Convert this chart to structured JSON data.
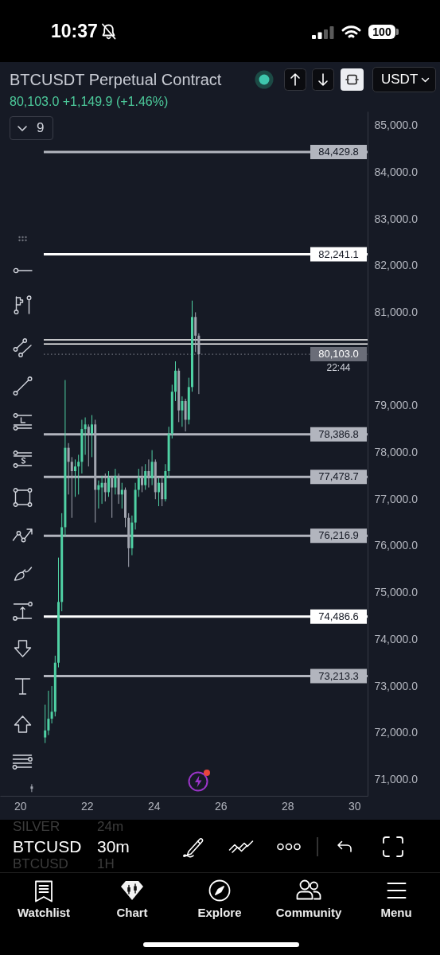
{
  "chart_data": {
    "type": "candlestick",
    "title": "BTCUSDT Perpetual Contract",
    "subtitle": "80,103.0 +1,149.9 (+1.46%)",
    "annotations": [
      "10:37",
      "100",
      "USDT",
      "9",
      "SILVER",
      "24m",
      "BTCUSD",
      "30m",
      "BTCUSD",
      "1H",
      "Watchlist",
      "Chart",
      "Explore",
      "Community",
      "Menu",
      {
        "text": "22:44",
        "y": 80103.0
      }
    ],
    "xlim": [
      19.4,
      30.4
    ],
    "xticks": [
      20,
      22,
      24,
      26,
      28,
      30
    ],
    "ylim": [
      70650,
      85300
    ],
    "yticks": [
      {
        "value": 85000,
        "label": "85,000.0"
      },
      {
        "value": 84000,
        "label": "84,000.0"
      },
      {
        "value": 83000,
        "label": "83,000.0"
      },
      {
        "value": 82000,
        "label": "82,000.0"
      },
      {
        "value": 81000,
        "label": "81,000.0"
      },
      {
        "value": 79000,
        "label": "79,000.0"
      },
      {
        "value": 78000,
        "label": "78,000.0"
      },
      {
        "value": 77000,
        "label": "77,000.0"
      },
      {
        "value": 76000,
        "label": "76,000.0"
      },
      {
        "value": 75000,
        "label": "75,000.0"
      },
      {
        "value": 74000,
        "label": "74,000.0"
      },
      {
        "value": 73000,
        "label": "73,000.0"
      },
      {
        "value": 72000,
        "label": "72,000.0"
      },
      {
        "value": 71000,
        "label": "71,000.0"
      }
    ],
    "ref_lines": [
      {
        "axis": "y",
        "value": 84429.8,
        "label": "84,429.8",
        "color": "#b2b5be"
      },
      {
        "axis": "y",
        "value": 82241.1,
        "label": "82,241.1",
        "color": "#ffffff"
      },
      {
        "axis": "y",
        "value": 80410,
        "color": "#ffffff"
      },
      {
        "axis": "y",
        "value": 80320,
        "color": "#ffffff"
      },
      {
        "axis": "y",
        "value": 80103.0,
        "label": "80,103.0",
        "color": "#6a6d78",
        "line_style": "dotted"
      },
      {
        "axis": "y",
        "value": 78386.8,
        "label": "78,386.8",
        "color": "#b2b5be"
      },
      {
        "axis": "y",
        "value": 77478.7,
        "label": "77,478.7",
        "color": "#b2b5be"
      },
      {
        "axis": "y",
        "value": 76216.9,
        "label": "76,216.9",
        "color": "#b2b5be"
      },
      {
        "axis": "y",
        "value": 74486.6,
        "label": "74,486.6",
        "color": "#ffffff"
      },
      {
        "axis": "y",
        "value": 73213.3,
        "label": "73,213.3",
        "color": "#b2b5be"
      }
    ],
    "x": [
      20.35,
      20.75,
      20.85,
      20.95,
      21.05,
      21.15,
      21.25,
      21.35,
      21.45,
      21.55,
      21.65,
      21.75,
      21.85,
      21.95,
      22.05,
      22.15,
      22.25,
      22.35,
      22.45,
      22.55,
      22.65,
      22.75,
      22.85,
      22.95,
      23.05,
      23.15,
      23.25,
      23.35,
      23.45,
      23.55,
      23.65,
      23.75,
      23.85,
      23.95,
      24.05,
      24.15,
      24.25,
      24.35,
      24.45,
      24.55,
      24.65,
      24.75,
      24.85,
      24.95,
      25.05,
      25.15,
      25.25,
      25.35
    ],
    "ohlc": [
      [
        70850,
        70900,
        70730,
        70800
      ],
      [
        71900,
        72600,
        71780,
        72050
      ],
      [
        72050,
        72900,
        71950,
        72300
      ],
      [
        72300,
        73000,
        72200,
        72450
      ],
      [
        72450,
        73650,
        72350,
        73500
      ],
      [
        73500,
        75750,
        73400,
        74800
      ],
      [
        74800,
        76700,
        74600,
        76400
      ],
      [
        76400,
        79550,
        76200,
        78100
      ],
      [
        78100,
        78200,
        77100,
        77800
      ],
      [
        77800,
        77900,
        76600,
        77600
      ],
      [
        77600,
        77850,
        77050,
        77700
      ],
      [
        77700,
        77950,
        77100,
        77800
      ],
      [
        77800,
        78700,
        77550,
        78500
      ],
      [
        78500,
        78750,
        77950,
        78600
      ],
      [
        78550,
        78600,
        77700,
        78400
      ],
      [
        78400,
        78800,
        77900,
        78600
      ],
      [
        78600,
        78700,
        76500,
        77200
      ],
      [
        77200,
        77400,
        76800,
        77300
      ],
      [
        77250,
        77500,
        76900,
        77350
      ],
      [
        77350,
        77550,
        76950,
        77150
      ],
      [
        77150,
        77600,
        77050,
        77450
      ],
      [
        77450,
        77500,
        76600,
        77250
      ],
      [
        77250,
        77650,
        77100,
        77500
      ],
      [
        77500,
        77550,
        76900,
        77100
      ],
      [
        77100,
        77350,
        76800,
        77200
      ],
      [
        77200,
        77250,
        76400,
        76600
      ],
      [
        76600,
        76700,
        75550,
        75950
      ],
      [
        75950,
        76650,
        75800,
        76500
      ],
      [
        76500,
        77350,
        76350,
        77200
      ],
      [
        77200,
        77650,
        77050,
        77450
      ],
      [
        77450,
        77700,
        77150,
        77300
      ],
      [
        77300,
        77750,
        77200,
        77600
      ],
      [
        77600,
        77850,
        77250,
        77450
      ],
      [
        77450,
        78050,
        77300,
        77800
      ],
      [
        77800,
        77850,
        77000,
        77150
      ],
      [
        77150,
        77450,
        76850,
        77350
      ],
      [
        77350,
        77500,
        76850,
        77000
      ],
      [
        77000,
        77750,
        76950,
        77600
      ],
      [
        77600,
        78550,
        77450,
        78400
      ],
      [
        78400,
        79450,
        78300,
        79300
      ],
      [
        79300,
        79950,
        79100,
        79750
      ],
      [
        79750,
        79800,
        78650,
        78900
      ],
      [
        78900,
        79200,
        78550,
        79100
      ],
      [
        79100,
        79150,
        78450,
        78700
      ],
      [
        78700,
        79600,
        78600,
        79400
      ],
      [
        79400,
        81250,
        79300,
        80900
      ],
      [
        80900,
        81000,
        80150,
        80500
      ],
      [
        80500,
        80550,
        79250,
        80103.0
      ]
    ],
    "colors": [
      "#a2a6b0",
      "#4fd1a4",
      "#4fd1a4",
      "#4fd1a4",
      "#4fd1a4",
      "#4fd1a4",
      "#4fd1a4",
      "#4fd1a4",
      "#a2a6b0",
      "#a2a6b0",
      "#4fd1a4",
      "#4fd1a4",
      "#4fd1a4",
      "#4fd1a4",
      "#a2a6b0",
      "#4fd1a4",
      "#a2a6b0",
      "#4fd1a4",
      "#4fd1a4",
      "#a2a6b0",
      "#4fd1a4",
      "#a2a6b0",
      "#4fd1a4",
      "#a2a6b0",
      "#4fd1a4",
      "#a2a6b0",
      "#a2a6b0",
      "#4fd1a4",
      "#4fd1a4",
      "#4fd1a4",
      "#a2a6b0",
      "#4fd1a4",
      "#a2a6b0",
      "#4fd1a4",
      "#a2a6b0",
      "#4fd1a4",
      "#a2a6b0",
      "#4fd1a4",
      "#4fd1a4",
      "#4fd1a4",
      "#4fd1a4",
      "#a2a6b0",
      "#4fd1a4",
      "#a2a6b0",
      "#4fd1a4",
      "#4fd1a4",
      "#a2a6b0",
      "#a2a6b0"
    ]
  }
}
